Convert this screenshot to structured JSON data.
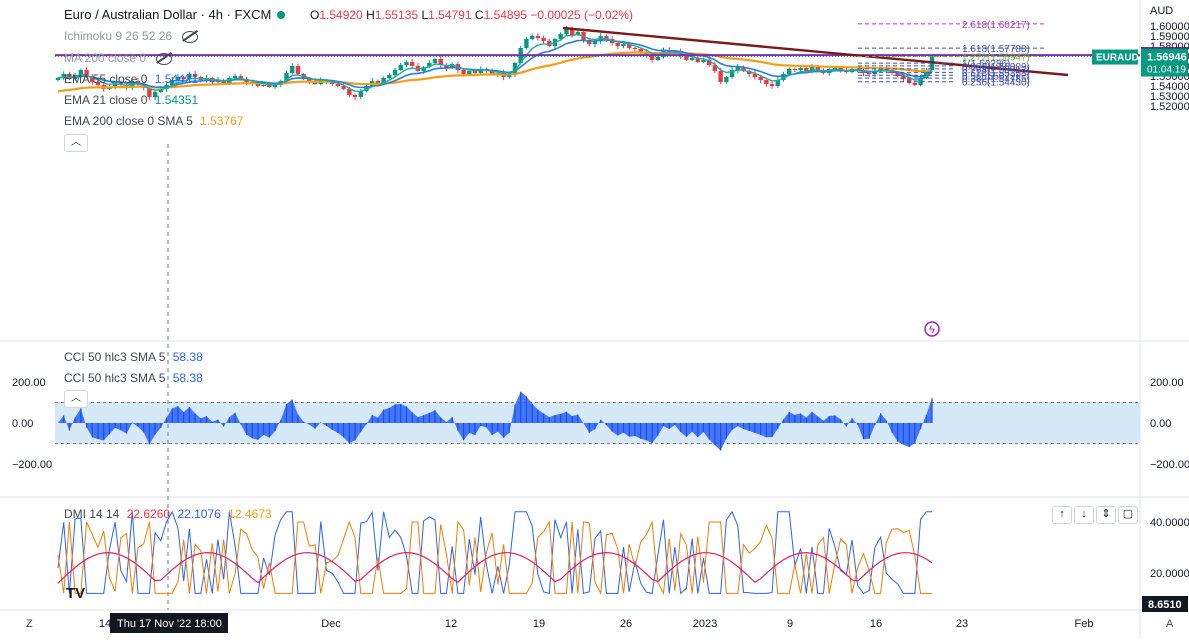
{
  "header": {
    "title": "Euro / Australian Dollar · 4h · FXCM",
    "ohlc": {
      "o_label": "O",
      "o": "1.54920",
      "h_label": "H",
      "h": "1.55135",
      "l_label": "L",
      "l": "1.54791",
      "c_label": "C",
      "c": "1.54895",
      "chg": "−0.00025 (−0.02%)"
    }
  },
  "indicators": {
    "ichimoku": "Ichimoku 9 26 52 26",
    "ma200": "MA 200 close 0",
    "ema55": {
      "label": "EMA 55 close 0",
      "value": "1.54421"
    },
    "ema21": {
      "label": "EMA 21 close 0",
      "value": "1.54351"
    },
    "ema200": {
      "label": "EMA 200 close 0 SMA 5",
      "value": "1.53767"
    },
    "cci1": {
      "label": "CCI 50 hlc3 SMA 5",
      "value": "58.38"
    },
    "cci2": {
      "label": "CCI 50 hlc3 SMA 5",
      "value": "58.38"
    },
    "dmi": {
      "label": "DMI 14 14",
      "v1": "22.6260",
      "v2": "22.1076",
      "v3": "12.4673"
    }
  },
  "price_axis": {
    "currency": "AUD",
    "ticks": [
      "1.60000",
      "1.59000",
      "1.58000",
      "1.57000",
      "1.56000",
      "1.55000",
      "1.54000",
      "1.53000",
      "1.52000"
    ],
    "symbol_tag": "EURAUD",
    "last_price": "1.56946",
    "countdown": "01:04:19",
    "level_tag": "1.57090"
  },
  "cci_axis": {
    "ticks": [
      "200.00",
      "0.00",
      "−200.00"
    ]
  },
  "dmi_axis": {
    "ticks": [
      "40.0000",
      "20.0000"
    ],
    "tag": "8.6510"
  },
  "time_axis": {
    "labels": [
      "14",
      "Dec",
      "12",
      "19",
      "26",
      "2023",
      "9",
      "16",
      "23",
      "Feb"
    ],
    "crosshair_label": "Thu 17 Nov '22    18:00"
  },
  "fib_levels": [
    {
      "label": "2.618(1.60217)",
      "price": 1.60217
    },
    {
      "label": "1.618(1.57788)",
      "price": 1.57788
    },
    {
      "label": "1.272(1.56947)",
      "price": 1.56947
    },
    {
      "label": "1(1.56286)",
      "price": 1.56286
    },
    {
      "label": "0.886(1.56009)",
      "price": 1.56009
    },
    {
      "label": "0.764(1.55713)",
      "price": 1.55713
    },
    {
      "label": "0.618(1.55358)",
      "price": 1.55358
    },
    {
      "label": "0.5(1.55072)",
      "price": 1.55072
    },
    {
      "label": "0.382(1.54785)",
      "price": 1.54785
    },
    {
      "label": "0.236(1.54430)",
      "price": 1.5443
    }
  ],
  "colors": {
    "up": "#089981",
    "down": "#f23645",
    "ema21": "#1fb094",
    "ema55": "#2a7de1",
    "ema200": "#f59d15",
    "trendline": "#7b1a1a",
    "hline": "#7e2fb0",
    "cci": "#2962ff"
  },
  "bottom_bar": {
    "left": "Z",
    "right": "A"
  },
  "chart_data": {
    "type": "candlestick",
    "symbol": "EURAUD",
    "timeframe": "4h",
    "ylim": [
      1.515,
      1.604
    ],
    "close_series_approx": [
      1.548,
      1.552,
      1.547,
      1.551,
      1.556,
      1.549,
      1.544,
      1.541,
      1.537,
      1.539,
      1.543,
      1.541,
      1.538,
      1.545,
      1.542,
      1.538,
      1.529,
      1.534,
      1.537,
      1.541,
      1.546,
      1.549,
      1.547,
      1.552,
      1.549,
      1.546,
      1.548,
      1.544,
      1.546,
      1.543,
      1.548,
      1.55,
      1.547,
      1.544,
      1.542,
      1.54,
      1.541,
      1.539,
      1.541,
      1.545,
      1.553,
      1.56,
      1.552,
      1.547,
      1.545,
      1.542,
      1.546,
      1.544,
      1.542,
      1.54,
      1.537,
      1.531,
      1.529,
      1.535,
      1.54,
      1.545,
      1.543,
      1.548,
      1.551,
      1.556,
      1.561,
      1.564,
      1.56,
      1.555,
      1.559,
      1.563,
      1.567,
      1.561,
      1.558,
      1.562,
      1.556,
      1.552,
      1.555,
      1.553,
      1.557,
      1.556,
      1.552,
      1.553,
      1.549,
      1.551,
      1.563,
      1.578,
      1.587,
      1.59,
      1.588,
      1.585,
      1.58,
      1.587,
      1.592,
      1.598,
      1.591,
      1.594,
      1.586,
      1.582,
      1.585,
      1.59,
      1.587,
      1.583,
      1.58,
      1.582,
      1.578,
      1.577,
      1.574,
      1.571,
      1.566,
      1.569,
      1.576,
      1.573,
      1.575,
      1.57,
      1.566,
      1.568,
      1.564,
      1.566,
      1.561,
      1.555,
      1.544,
      1.549,
      1.556,
      1.559,
      1.555,
      1.552,
      1.549,
      1.546,
      1.542,
      1.54,
      1.546,
      1.552,
      1.557,
      1.556,
      1.558,
      1.555,
      1.559,
      1.556,
      1.553,
      1.557,
      1.558,
      1.556,
      1.554,
      1.557,
      1.556,
      1.553,
      1.552,
      1.555,
      1.558,
      1.556,
      1.553,
      1.55,
      1.547,
      1.543,
      1.541,
      1.548,
      1.556,
      1.5695
    ],
    "markers": {
      "trendline": "descending from 1.598 to 1.551",
      "horizontal_level": 1.5709
    }
  }
}
